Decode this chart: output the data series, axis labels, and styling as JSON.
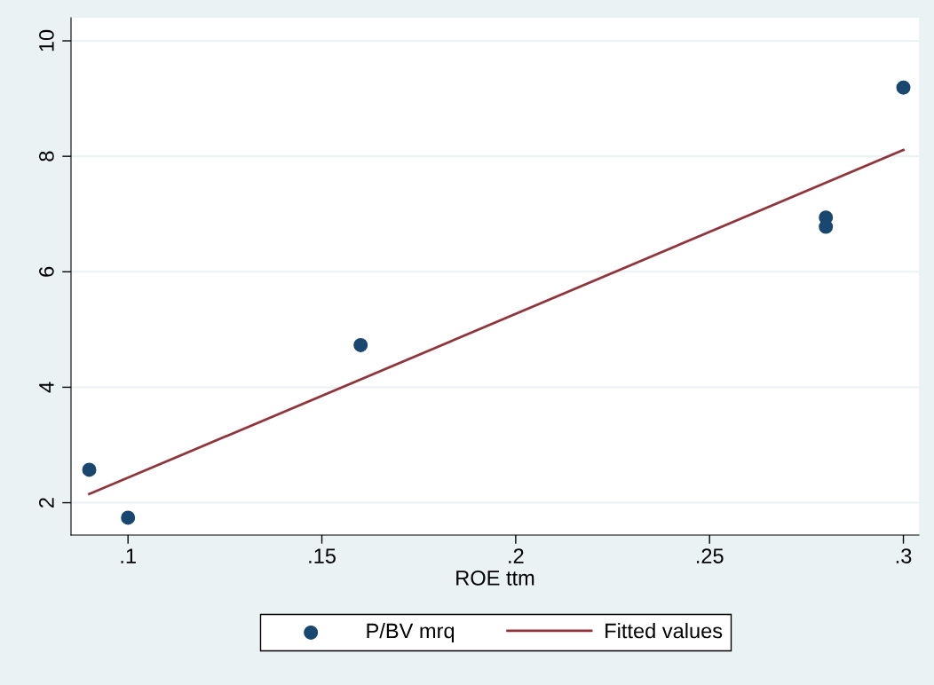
{
  "chart_data": {
    "type": "scatter",
    "xlabel": "ROE ttm",
    "series": [
      {
        "name": "P/BV mrq",
        "color": "#1a476f",
        "marker": "circle",
        "x": [
          0.09,
          0.1,
          0.16,
          0.28,
          0.28,
          0.3
        ],
        "values": [
          2.57,
          1.74,
          4.73,
          6.94,
          6.78,
          9.19
        ]
      },
      {
        "name": "Fitted values",
        "type": "line",
        "color": "#90353b",
        "marker": "none",
        "line_style": "solid",
        "x": [
          0.09,
          0.3
        ],
        "values": [
          2.15,
          8.11
        ]
      }
    ],
    "xlim": [
      0.0853,
      0.304
    ],
    "ylim": [
      1.44,
      10.4
    ],
    "xticks": [
      {
        "value": 0.1,
        "label": ".1"
      },
      {
        "value": 0.15,
        "label": ".15"
      },
      {
        "value": 0.2,
        "label": ".2"
      },
      {
        "value": 0.25,
        "label": ".25"
      },
      {
        "value": 0.3,
        "label": ".3"
      }
    ],
    "yticks": [
      2,
      4,
      6,
      8,
      10
    ],
    "grid": "y",
    "legend": "bottom"
  }
}
